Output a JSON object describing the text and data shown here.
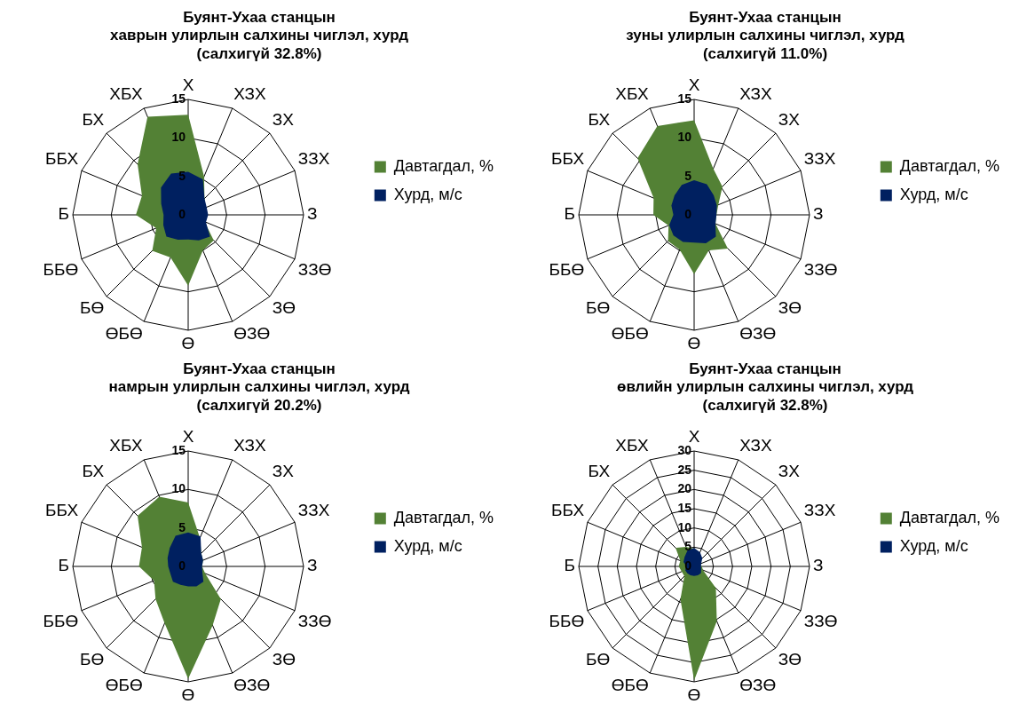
{
  "chart_data": [
    {
      "type": "radar",
      "title": "Буянт-Ухаа станцын\nхаврын улирлын салхины чиглэл, хурд\n(салхигүй 32.8%)",
      "categories": [
        "Х",
        "ХЗХ",
        "ЗХ",
        "ЗЗХ",
        "З",
        "ЗЗӨ",
        "ЗӨ",
        "ӨЗӨ",
        "Ө",
        "ӨБӨ",
        "БӨ",
        "ББӨ",
        "Б",
        "ББХ",
        "БХ",
        "ХБХ"
      ],
      "ylim": [
        0,
        15
      ],
      "yticks": [
        0,
        5,
        10,
        15
      ],
      "grid": true,
      "legend": "right",
      "marker": "none",
      "series": [
        {
          "name": "Давтагдал, %",
          "color": "#538135",
          "values": [
            13,
            5.4,
            3,
            2.4,
            2.1,
            2.3,
            4.7,
            5,
            9.2,
            6,
            6.6,
            4.5,
            6.8,
            6.5,
            9.3,
            13.8
          ]
        },
        {
          "name": "Хурд, м/с",
          "color": "#002060",
          "values": [
            5.6,
            5,
            3,
            2.6,
            2.6,
            2.5,
            4,
            3.6,
            3.2,
            3.5,
            4,
            3.5,
            3.2,
            3.8,
            5,
            5.8
          ]
        }
      ]
    },
    {
      "type": "radar",
      "title": "Буянт-Ухаа станцын\nзуны улирлын салхины чиглэл, хурд\n(салхигүй 11.0%)",
      "categories": [
        "Х",
        "ХЗХ",
        "ЗХ",
        "ЗЗХ",
        "З",
        "ЗЗӨ",
        "ЗӨ",
        "ӨЗӨ",
        "Ө",
        "ӨБӨ",
        "БӨ",
        "ББӨ",
        "Б",
        "ББХ",
        "БХ",
        "ХБХ"
      ],
      "ylim": [
        0,
        15
      ],
      "yticks": [
        0,
        5,
        10,
        15
      ],
      "grid": true,
      "legend": "right",
      "marker": "none",
      "series": [
        {
          "name": "Давтагдал, %",
          "color": "#538135",
          "values": [
            12.3,
            6.5,
            5.2,
            3.4,
            2.9,
            3,
            6.2,
            5,
            7.7,
            4.9,
            4.8,
            3.6,
            5.3,
            5.7,
            10.4,
            12.5
          ]
        },
        {
          "name": "Хурд, м/с",
          "color": "#002060",
          "values": [
            4.5,
            4.3,
            3.6,
            3.2,
            2.9,
            3,
            4,
            4,
            3.6,
            3.8,
            3.8,
            3.5,
            2.7,
            3.2,
            3.6,
            4.2
          ]
        }
      ]
    },
    {
      "type": "radar",
      "title": "Буянт-Ухаа станцын\nнамрын улирлын салхины чиглэл, хурд\n(салхигүй 20.2%)",
      "categories": [
        "Х",
        "ХЗХ",
        "ЗХ",
        "ЗЗХ",
        "З",
        "ЗЗӨ",
        "ЗӨ",
        "ӨЗӨ",
        "Ө",
        "ӨБӨ",
        "БӨ",
        "ББӨ",
        "Б",
        "ББХ",
        "БХ",
        "ХБХ"
      ],
      "ylim": [
        0,
        15
      ],
      "yticks": [
        0,
        5,
        10,
        15
      ],
      "grid": true,
      "legend": "right",
      "marker": "none",
      "series": [
        {
          "name": "Давтагдал, %",
          "color": "#538135",
          "values": [
            8.3,
            4,
            2.4,
            2.1,
            1.8,
            2.4,
            6,
            8.3,
            14.6,
            8,
            6,
            4.8,
            6.4,
            6.5,
            9.3,
            9.8
          ]
        },
        {
          "name": "Хурд, м/с",
          "color": "#002060",
          "values": [
            4.4,
            4.2,
            2.4,
            2.1,
            1.8,
            2,
            2.8,
            2.8,
            2.6,
            2.6,
            2.8,
            2.5,
            2.6,
            2.9,
            3.4,
            4.3
          ]
        }
      ]
    },
    {
      "type": "radar",
      "title": "Буянт-Ухаа станцын\nөвлийн улирлын салхины чиглэл, хурд\n(салхигүй 32.8%)",
      "categories": [
        "Х",
        "ХЗХ",
        "ЗХ",
        "ЗЗХ",
        "З",
        "ЗЗӨ",
        "ЗӨ",
        "ӨЗӨ",
        "Ө",
        "ӨБӨ",
        "БӨ",
        "ББӨ",
        "Б",
        "ББХ",
        "БХ",
        "ХБХ"
      ],
      "ylim": [
        0,
        30
      ],
      "yticks": [
        0,
        5,
        10,
        15,
        20,
        25,
        30
      ],
      "grid": true,
      "legend": "right",
      "marker": "none",
      "series": [
        {
          "name": "Давтагдал, %",
          "color": "#538135",
          "values": [
            4.6,
            2.5,
            1.5,
            1.5,
            2,
            2.5,
            8,
            15.4,
            29.6,
            9.3,
            3.6,
            3.5,
            4,
            3.9,
            6.8,
            5.5
          ]
        },
        {
          "name": "Хурд, м/с",
          "color": "#002060",
          "values": [
            4.8,
            4,
            3,
            2,
            1.8,
            2,
            2.5,
            2.5,
            2.5,
            2.5,
            2.5,
            2.5,
            2,
            3,
            3.5,
            4.5
          ]
        }
      ]
    }
  ]
}
